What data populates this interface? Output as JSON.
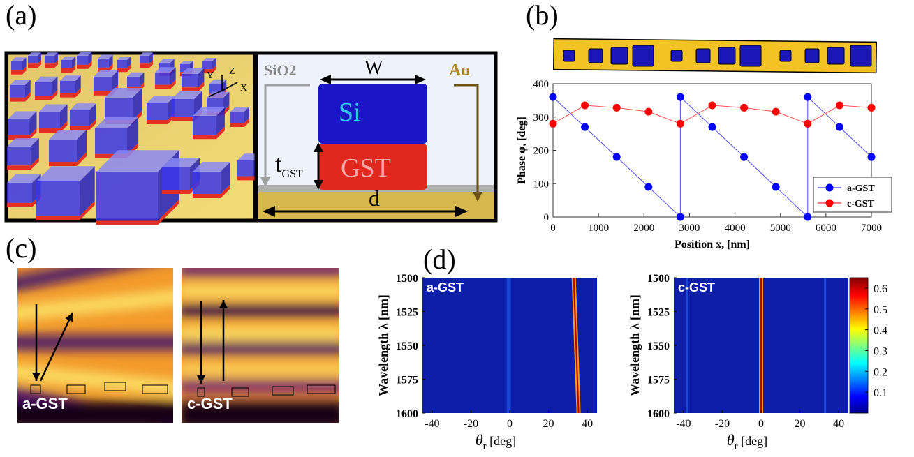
{
  "panels": {
    "a": "(a)",
    "b": "(b)",
    "c": "(c)",
    "d": "(d)"
  },
  "panel_a": {
    "axes": {
      "x": "X",
      "y": "Y",
      "z": "Z"
    },
    "sio2": "SiO2",
    "au": "Au",
    "w": "W",
    "si": "Si",
    "t_main": "t",
    "t_sub": "GST",
    "gst": "GST",
    "d": "d"
  },
  "panel_c": {
    "left_label": "a-GST",
    "right_label": "c-GST"
  },
  "chart_data": [
    {
      "type": "line",
      "xlabel": "Position x, [nm]",
      "ylabel": "Phase φ, [deg]",
      "xlim": [
        0,
        7000
      ],
      "ylim": [
        0,
        400
      ],
      "xticks": [
        0,
        1000,
        2000,
        3000,
        4000,
        5000,
        6000,
        7000
      ],
      "yticks": [
        0,
        100,
        200,
        300,
        400
      ],
      "legend_position": "bottom-right",
      "series": [
        {
          "name": "a-GST",
          "color": "#0000ff",
          "x": [
            0,
            700,
            1400,
            2100,
            2800,
            2800,
            3500,
            4200,
            4900,
            5600,
            5600,
            6300,
            7000
          ],
          "y": [
            360,
            270,
            180,
            90,
            0,
            360,
            270,
            180,
            90,
            0,
            360,
            270,
            180
          ]
        },
        {
          "name": "c-GST",
          "color": "#ff0000",
          "x": [
            0,
            700,
            1400,
            2100,
            2800,
            3500,
            4200,
            4900,
            5600,
            6300,
            7000
          ],
          "y": [
            280,
            335,
            328,
            316,
            280,
            335,
            328,
            316,
            280,
            335,
            328
          ]
        }
      ]
    },
    {
      "type": "heatmap",
      "title": "a-GST",
      "xlabel_main": "θ",
      "xlabel_sub": "r",
      "xlabel_unit": "[deg]",
      "ylabel": "Wavelength λ [nm]",
      "xlim": [
        -45,
        45
      ],
      "ylim": [
        1500,
        1600
      ],
      "xticks": [
        -40,
        -20,
        0,
        20,
        40
      ],
      "yticks": [
        1500,
        1525,
        1550,
        1575,
        1600
      ],
      "peak_line": {
        "theta_at_1500": 33,
        "theta_at_1600": 35.5
      },
      "secondary_lines": [
        -1,
        0
      ]
    },
    {
      "type": "heatmap",
      "title": "c-GST",
      "xlabel_main": "θ",
      "xlabel_sub": "r",
      "xlabel_unit": "[deg]",
      "ylabel": "Wavelength λ [nm]",
      "xlim": [
        -45,
        45
      ],
      "ylim": [
        1500,
        1600
      ],
      "xticks": [
        -40,
        -20,
        0,
        20,
        40
      ],
      "yticks": [
        1500,
        1525,
        1550,
        1575,
        1600
      ],
      "peak_line": {
        "theta_at_1500": 0,
        "theta_at_1600": 0
      },
      "secondary_lines": [
        -38,
        33
      ],
      "colorbar": {
        "min": 0,
        "max": 0.65,
        "ticks": [
          0.1,
          0.2,
          0.3,
          0.4,
          0.5,
          0.6
        ]
      }
    }
  ]
}
